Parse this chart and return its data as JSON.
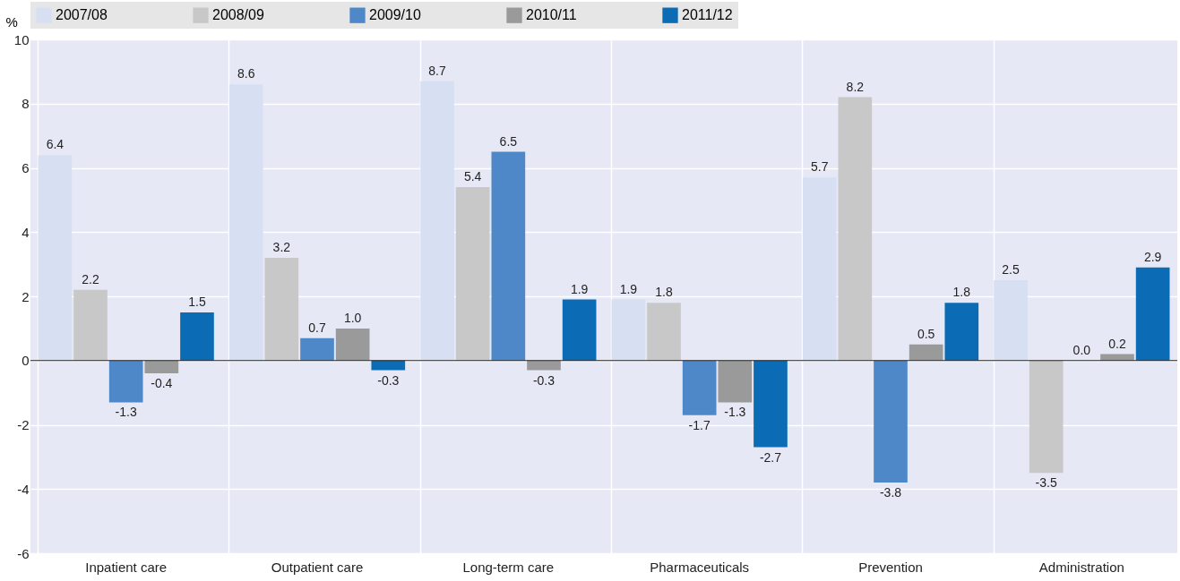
{
  "chart_data": {
    "type": "bar",
    "ylabel": "%",
    "categories": [
      "Inpatient care",
      "Outpatient care",
      "Long-term care",
      "Pharmaceuticals",
      "Prevention",
      "Administration"
    ],
    "series": [
      {
        "name": "2007/08",
        "color": "#d6e0f2",
        "values": [
          6.4,
          8.6,
          8.7,
          1.9,
          5.7,
          2.5
        ],
        "value_labels": [
          "6.4",
          "8.6",
          "8.7",
          "1.9",
          "5.7",
          "2.5"
        ]
      },
      {
        "name": "2008/09",
        "color": "#c8c8c8",
        "values": [
          2.2,
          3.2,
          5.4,
          1.8,
          8.2,
          -3.5
        ],
        "value_labels": [
          "2.2",
          "3.2",
          "5.4",
          "1.8",
          "8.2",
          "-3.5"
        ]
      },
      {
        "name": "2009/10",
        "color": "#4f88c8",
        "values": [
          -1.3,
          0.7,
          6.5,
          -1.7,
          -3.8,
          0.0
        ],
        "value_labels": [
          "-1.3",
          "0.7",
          "6.5",
          "-1.7",
          "-3.8",
          "0.0"
        ]
      },
      {
        "name": "2010/11",
        "color": "#9a9a9a",
        "values": [
          -0.4,
          1.0,
          -0.3,
          -1.3,
          0.5,
          0.2
        ],
        "value_labels": [
          "-0.4",
          "1.0",
          "-0.3",
          "-1.3",
          "0.5",
          "0.2"
        ]
      },
      {
        "name": "2011/12",
        "color": "#0b6bb5",
        "values": [
          1.5,
          -0.3,
          1.9,
          -2.7,
          1.8,
          2.9
        ],
        "value_labels": [
          "1.5",
          "-0.3",
          "1.9",
          "-2.7",
          "1.8",
          "2.9"
        ]
      }
    ],
    "ylim": [
      -6,
      10
    ],
    "yticks": [
      -6,
      -4,
      -2,
      0,
      2,
      4,
      6,
      8,
      10
    ],
    "grid": true,
    "legend": "top"
  }
}
